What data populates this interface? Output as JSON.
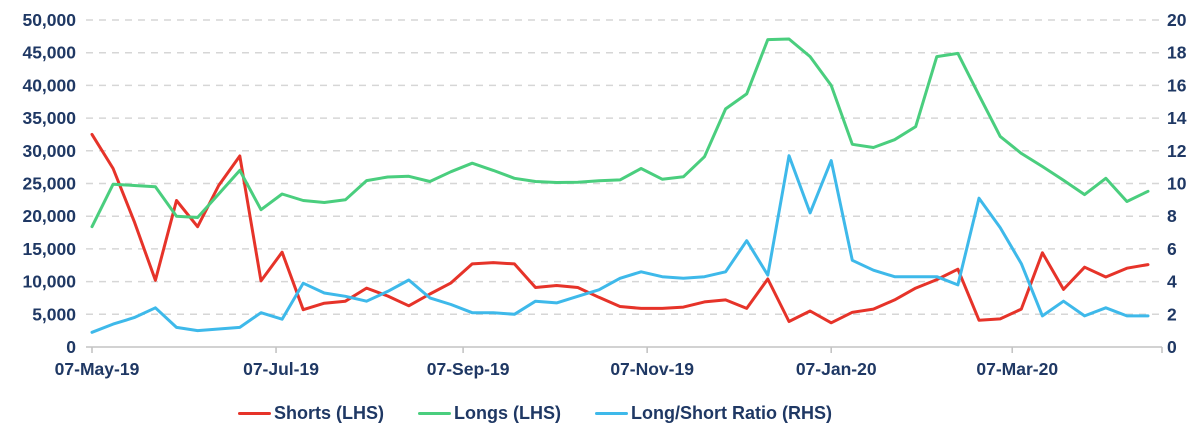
{
  "chart_data": {
    "type": "line",
    "title": "",
    "legend_position": "bottom",
    "grid": "dashed-horizontal",
    "x_dates": [
      "07-May-19",
      "14-May-19",
      "21-May-19",
      "28-May-19",
      "04-Jun-19",
      "11-Jun-19",
      "18-Jun-19",
      "25-Jun-19",
      "02-Jul-19",
      "09-Jul-19",
      "16-Jul-19",
      "23-Jul-19",
      "30-Jul-19",
      "06-Aug-19",
      "13-Aug-19",
      "20-Aug-19",
      "27-Aug-19",
      "03-Sep-19",
      "10-Sep-19",
      "17-Sep-19",
      "24-Sep-19",
      "01-Oct-19",
      "08-Oct-19",
      "15-Oct-19",
      "22-Oct-19",
      "29-Oct-19",
      "05-Nov-19",
      "12-Nov-19",
      "19-Nov-19",
      "26-Nov-19",
      "03-Dec-19",
      "10-Dec-19",
      "17-Dec-19",
      "24-Dec-19",
      "31-Dec-19",
      "07-Jan-20",
      "14-Jan-20",
      "21-Jan-20",
      "28-Jan-20",
      "04-Feb-20",
      "11-Feb-20",
      "18-Feb-20",
      "25-Feb-20",
      "03-Mar-20",
      "10-Mar-20",
      "17-Mar-20",
      "24-Mar-20",
      "31-Mar-20",
      "07-Apr-20",
      "14-Apr-20",
      "21-Apr-20"
    ],
    "x_tick_labels": [
      "07-May-19",
      "07-Jul-19",
      "07-Sep-19",
      "07-Nov-19",
      "07-Jan-20",
      "07-Mar-20"
    ],
    "x_tick_day_offsets": [
      0,
      61,
      123,
      184,
      245,
      305
    ],
    "x_total_days": 350,
    "left_axis": {
      "min": 0,
      "max": 50000,
      "tick_step": 5000,
      "tick_labels": [
        "0",
        "5,000",
        "10,000",
        "15,000",
        "20,000",
        "25,000",
        "30,000",
        "35,000",
        "40,000",
        "45,000",
        "50,000"
      ]
    },
    "right_axis": {
      "min": 0,
      "max": 20,
      "tick_step": 2,
      "tick_labels": [
        "0",
        "2",
        "4",
        "6",
        "8",
        "10",
        "12",
        "14",
        "16",
        "18",
        "20"
      ]
    },
    "series": [
      {
        "name": "Shorts (LHS)",
        "axis": "left",
        "color": "#E63329",
        "values": [
          32500,
          27300,
          19200,
          10200,
          22400,
          18400,
          24700,
          29200,
          10100,
          14500,
          5700,
          6700,
          7000,
          9000,
          7800,
          6300,
          8100,
          9800,
          12700,
          12900,
          12700,
          9100,
          9400,
          9100,
          7600,
          6200,
          5900,
          5900,
          6100,
          6900,
          7200,
          5900,
          10400,
          3900,
          5500,
          3700,
          5300,
          5800,
          7200,
          9000,
          10300,
          11900,
          4100,
          4300,
          5800,
          14400,
          8800,
          12200,
          10700,
          12050,
          12600
        ]
      },
      {
        "name": "Longs (LHS)",
        "axis": "left",
        "color": "#4ACE7E",
        "values": [
          18400,
          24900,
          24700,
          24500,
          20000,
          19800,
          23400,
          27000,
          21000,
          23400,
          22400,
          22100,
          22500,
          25450,
          26000,
          26100,
          25300,
          26800,
          28100,
          27000,
          25800,
          25300,
          25150,
          25200,
          25430,
          25550,
          27300,
          25650,
          26030,
          29100,
          36400,
          38700,
          47000,
          47100,
          44400,
          40000,
          31000,
          30500,
          31700,
          33700,
          44400,
          44900,
          38500,
          32200,
          29600,
          27600,
          25500,
          23300,
          25800,
          22250,
          23800
        ]
      },
      {
        "name": "Long/Short Ratio (RHS)",
        "axis": "right",
        "color": "#3EB9EA",
        "values": [
          0.9,
          1.4,
          1.8,
          2.4,
          1.2,
          1.0,
          1.1,
          1.2,
          2.1,
          1.7,
          3.9,
          3.3,
          3.1,
          2.8,
          3.4,
          4.1,
          3.0,
          2.6,
          2.1,
          2.1,
          2.0,
          2.8,
          2.7,
          3.1,
          3.5,
          4.2,
          4.6,
          4.3,
          4.2,
          4.3,
          4.6,
          6.5,
          4.4,
          11.7,
          8.2,
          11.4,
          5.3,
          4.7,
          4.3,
          4.3,
          4.3,
          3.8,
          9.1,
          7.3,
          5.1,
          1.9,
          2.8,
          1.9,
          2.4,
          1.9,
          1.9
        ]
      }
    ],
    "colors": {
      "text": "#1F3864",
      "gridline": "#D6D6D6",
      "axis_line": "#C4C4C4"
    }
  }
}
